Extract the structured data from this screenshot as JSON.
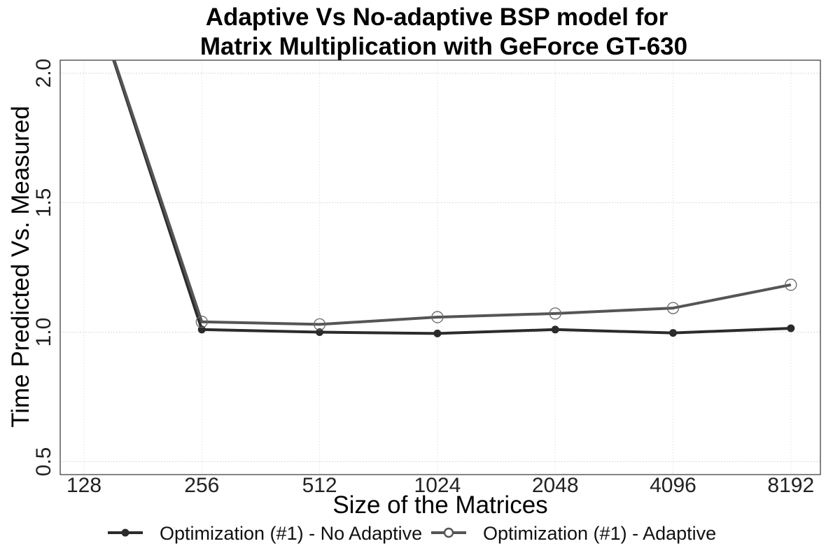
{
  "chart_data": {
    "type": "line",
    "title": "Adaptive Vs No-adaptive BSP model for",
    "subtitle": "Matrix Multiplication with GeForce GT-630",
    "xlabel": "Size of the Matrices",
    "ylabel": "Time Predicted Vs. Measured",
    "x_categories": [
      "128",
      "256",
      "512",
      "1024",
      "2048",
      "4096",
      "8192"
    ],
    "y_ticks": [
      "0.5",
      "1.0",
      "1.5",
      "2.0"
    ],
    "ylim": [
      0.45,
      2.05
    ],
    "grid": true,
    "legend_position": "bottom",
    "series": [
      {
        "name": "Optimization (#1) - No Adaptive",
        "color": "#2b2b2b",
        "marker": "filled-circle",
        "values": [
          2.4,
          1.01,
          1.0,
          0.995,
          1.01,
          0.997,
          1.015
        ]
      },
      {
        "name": "Optimization (#1) - Adaptive",
        "color": "#555555",
        "marker": "open-circle",
        "values": [
          2.4,
          1.04,
          1.03,
          1.058,
          1.072,
          1.093,
          1.183
        ]
      }
    ]
  }
}
